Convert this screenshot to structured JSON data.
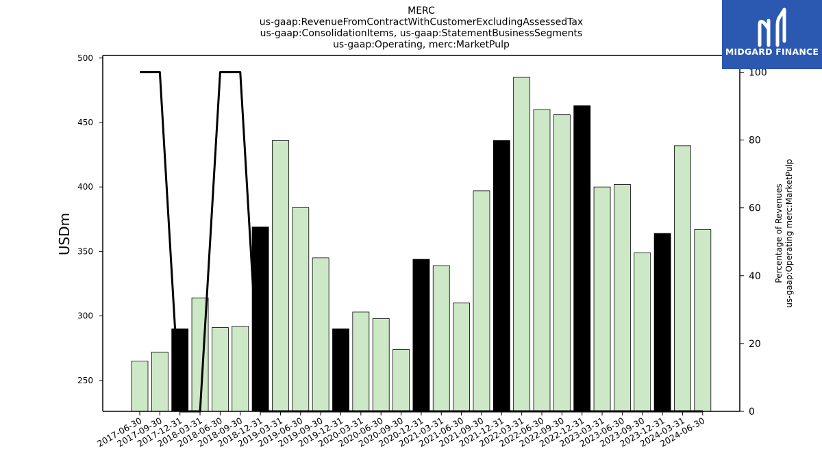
{
  "title_lines": [
    "MERC",
    "us-gaap:RevenueFromContractWithCustomerExcludingAssessedTax",
    "us-gaap:ConsolidationItems, us-gaap:StatementBusinessSegments",
    "us-gaap:Operating, merc:MarketPulp"
  ],
  "logo": {
    "text": "MIDGARD FINANCE",
    "bg_color": "#2b58b0"
  },
  "colors": {
    "bar_default": "#cde8c6",
    "bar_highlight": "#000000",
    "line": "#000000"
  },
  "chart_data": {
    "type": "bar",
    "title": "MERC\nus-gaap:RevenueFromContractWithCustomerExcludingAssessedTax\nus-gaap:ConsolidationItems, us-gaap:StatementBusinessSegments\nus-gaap:Operating, merc:MarketPulp",
    "categories": [
      "2017-06-30",
      "2017-09-30",
      "2017-12-31",
      "2018-03-31",
      "2018-06-30",
      "2018-09-30",
      "2018-12-31",
      "2019-03-31",
      "2019-06-30",
      "2019-09-30",
      "2019-12-31",
      "2020-03-31",
      "2020-06-30",
      "2020-09-30",
      "2020-12-31",
      "2021-03-31",
      "2021-06-30",
      "2021-09-30",
      "2021-12-31",
      "2022-03-31",
      "2022-06-30",
      "2022-09-30",
      "2022-12-31",
      "2023-03-31",
      "2023-06-30",
      "2023-09-30",
      "2023-12-31",
      "2024-03-31",
      "2024-06-30"
    ],
    "series": [
      {
        "axis": "left",
        "kind": "bar",
        "values": [
          265,
          272,
          290,
          314,
          291,
          292,
          369,
          436,
          384,
          345,
          290,
          303,
          298,
          274,
          344,
          339,
          310,
          397,
          436,
          485,
          460,
          456,
          463,
          400,
          402,
          349,
          364,
          432,
          367
        ],
        "highlight": [
          false,
          false,
          true,
          false,
          false,
          false,
          true,
          false,
          false,
          false,
          true,
          false,
          false,
          false,
          true,
          false,
          false,
          false,
          true,
          false,
          false,
          false,
          true,
          false,
          false,
          false,
          true,
          false,
          false
        ]
      },
      {
        "axis": "right",
        "kind": "line",
        "values": [
          100,
          100,
          0,
          0,
          100,
          100,
          0,
          0,
          0,
          0,
          0,
          0,
          0,
          0,
          0,
          0,
          0,
          0,
          0,
          0,
          0,
          0,
          0,
          0,
          0,
          0,
          0,
          0,
          0
        ]
      }
    ],
    "ylabel": "USDm",
    "ylim": [
      226,
      502
    ],
    "yticks": [
      250,
      300,
      350,
      400,
      450,
      500
    ],
    "y2label_lines": [
      "Percentage of Revenues",
      "us-gaap:Operating merc:MarketPulp"
    ],
    "y2lim": [
      0,
      100
    ],
    "y2ticks": [
      0,
      20,
      40,
      60,
      80,
      100
    ],
    "grid": false
  }
}
